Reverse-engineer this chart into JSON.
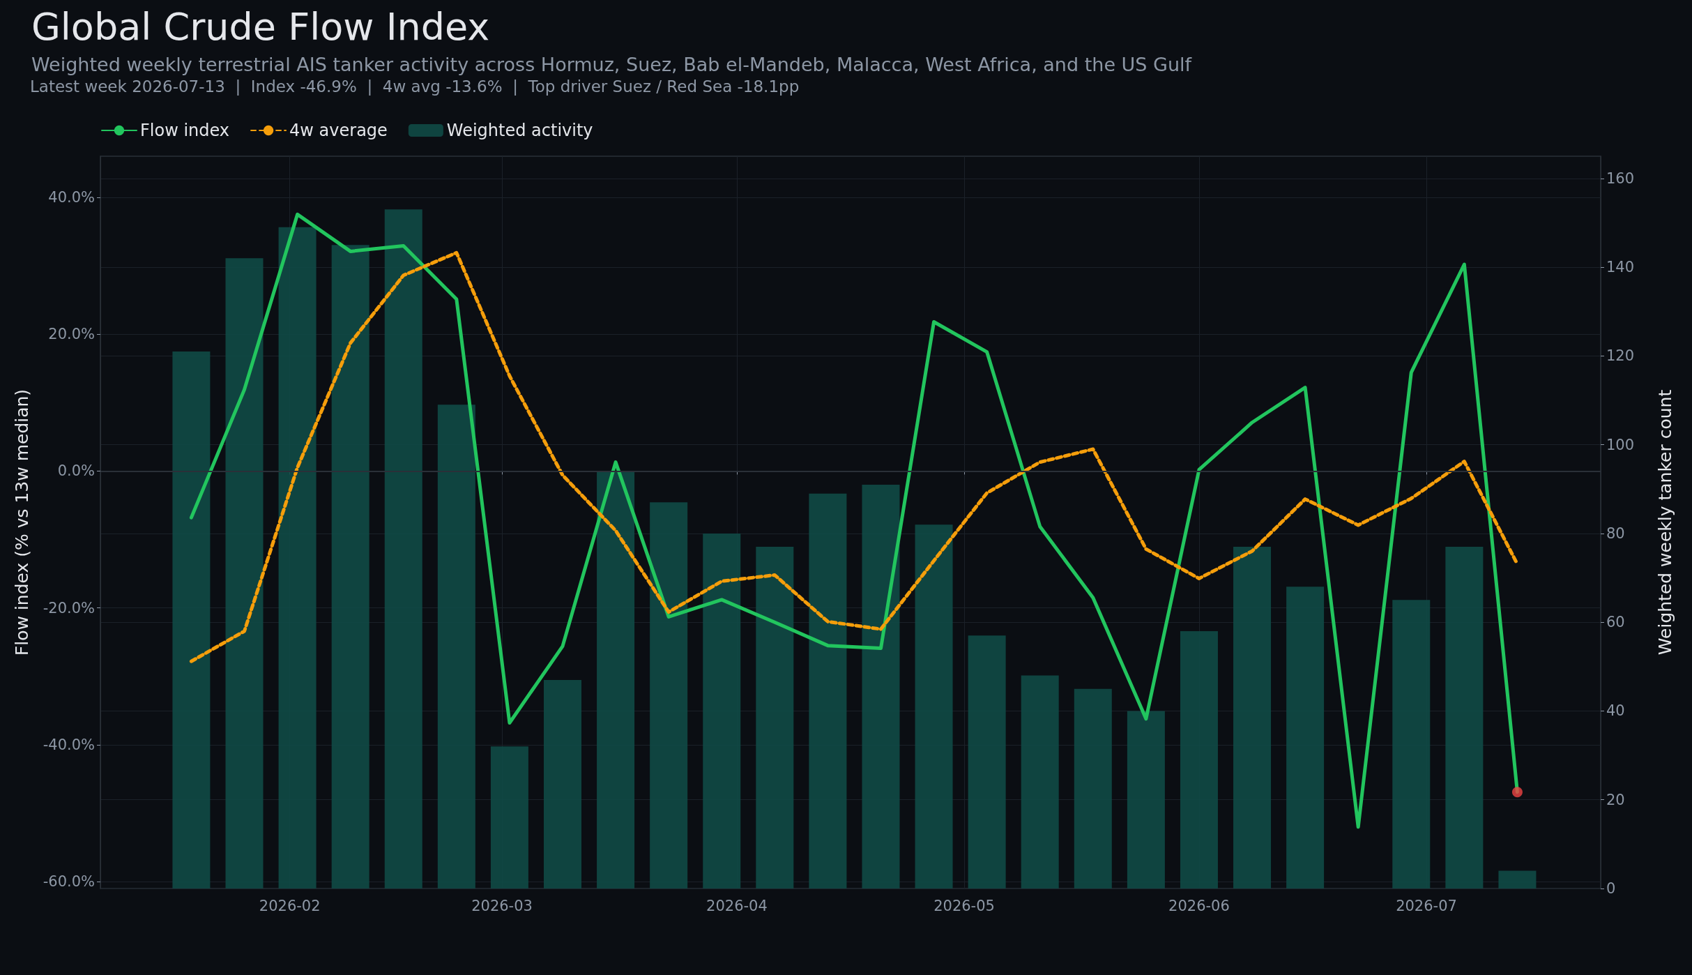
{
  "chart_data": {
    "type": "line",
    "title": "Global Crude Flow Index",
    "subtitle": "Weighted weekly terrestrial AIS tanker activity across Hormuz, Suez, Bab el-Mandeb, Malacca, West Africa, and the US Gulf",
    "annotations": [
      "Latest week 2026-07-13  |  Index -46.9%  |  4w avg -13.6%  |  Top driver Suez / Red Sea -18.1pp"
    ],
    "ylabel": "Flow index (% vs 13w median)",
    "y2label": "Weighted weekly tanker count",
    "x": [
      "2026-01-19",
      "2026-01-26",
      "2026-02-02",
      "2026-02-09",
      "2026-02-16",
      "2026-02-23",
      "2026-03-02",
      "2026-03-09",
      "2026-03-16",
      "2026-03-23",
      "2026-03-30",
      "2026-04-06",
      "2026-04-13",
      "2026-04-20",
      "2026-04-27",
      "2026-05-04",
      "2026-05-11",
      "2026-05-18",
      "2026-05-25",
      "2026-06-01",
      "2026-06-08",
      "2026-06-15",
      "2026-06-22",
      "2026-06-29",
      "2026-07-06",
      "2026-07-13"
    ],
    "series": [
      {
        "name": "Flow index",
        "color": "#22c55e",
        "line_style": "solid",
        "values": [
          -6.8,
          11.9,
          37.5,
          32.1,
          32.9,
          25.1,
          -36.8,
          -25.6,
          1.3,
          -21.3,
          -18.8,
          -22.1,
          -25.5,
          -25.9,
          21.8,
          17.4,
          -8.1,
          -18.5,
          -36.2,
          0.2,
          7.1,
          12.2,
          -52.0,
          14.4,
          30.2,
          -46.9
        ]
      },
      {
        "name": "4w average",
        "color": "#f59e0b",
        "line_style": "dashed",
        "values": [
          -27.8,
          -23.4,
          0.5,
          18.7,
          28.6,
          31.9,
          13.9,
          -0.6,
          -8.7,
          -20.6,
          -16.1,
          -15.2,
          -22.0,
          -23.1,
          -13.1,
          -3.2,
          1.3,
          3.2,
          -11.4,
          -15.7,
          -11.7,
          -4.1,
          -7.9,
          -4.0,
          1.4,
          -13.6
        ]
      },
      {
        "name": "Weighted activity",
        "type": "bar",
        "axis": "y2",
        "color": "#0f4a46",
        "values": [
          121,
          142,
          149,
          145,
          153,
          109,
          32,
          47,
          94,
          87,
          80,
          77,
          89,
          91,
          82,
          57,
          48,
          45,
          40,
          58,
          77,
          68,
          null,
          65,
          77,
          4
        ]
      },
      {
        "type": "scatter",
        "marker": "circle",
        "color": "#ef4444",
        "x": [
          "2026-07-13"
        ],
        "values": [
          -46.9
        ]
      }
    ],
    "xlim": [
      "2026-01-07",
      "2026-07-24"
    ],
    "xticks": [
      {
        "value": "2026-02-01",
        "label": "2026-02"
      },
      {
        "value": "2026-03-01",
        "label": "2026-03"
      },
      {
        "value": "2026-04-01",
        "label": "2026-04"
      },
      {
        "value": "2026-05-01",
        "label": "2026-05"
      },
      {
        "value": "2026-06-01",
        "label": "2026-06"
      },
      {
        "value": "2026-07-01",
        "label": "2026-07"
      }
    ],
    "ylim": [
      -61,
      46
    ],
    "yticks": [
      {
        "value": -60,
        "label": "-60.0%"
      },
      {
        "value": -40,
        "label": "-40.0%"
      },
      {
        "value": -20,
        "label": "-20.0%"
      },
      {
        "value": 0,
        "label": "0.0%"
      },
      {
        "value": 20,
        "label": "20.0%"
      },
      {
        "value": 40,
        "label": "40.0%"
      }
    ],
    "y2lim": [
      0,
      165
    ],
    "y2ticks": [
      0,
      20,
      40,
      60,
      80,
      100,
      120,
      140,
      160
    ],
    "ref_lines": [
      {
        "axis": "y",
        "value": 0,
        "color": "#2a3038"
      }
    ],
    "grid": true,
    "legend": "top left",
    "marker": "none"
  }
}
